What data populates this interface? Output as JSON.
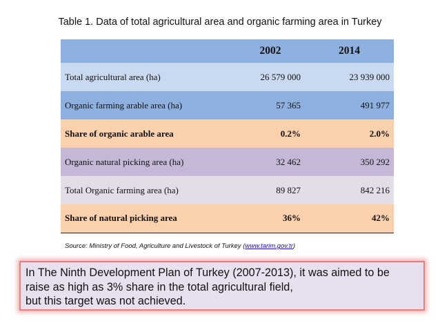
{
  "caption": "Table 1. Data of total agricultural area and organic farming area in Turkey",
  "colors": {
    "header": "#8eb0df",
    "row_total": "#c9d9ef",
    "row_organic": "#8eb0df",
    "row_share": "#fbd0ad",
    "row_picking": "#c4b8d6",
    "row_total_organic": "#e3dde9",
    "row_share_picking": "#fbd0ad",
    "note_background": "#e8e0ee",
    "note_border": "#e67f7f"
  },
  "table": {
    "headers": [
      "",
      "2002",
      "2014"
    ],
    "rows": [
      {
        "label": "Total agricultural area (ha)",
        "v2002": "26 579 000",
        "v2014": "23 939 000",
        "bold": false
      },
      {
        "label": "Organic farming arable area (ha)",
        "v2002": "57 365",
        "v2014": "491 977",
        "bold": false
      },
      {
        "label": "Share of organic arable area",
        "v2002": "0.2%",
        "v2014": "2.0%",
        "bold": true
      },
      {
        "label": "Organic natural picking area (ha)",
        "v2002": "32 462",
        "v2014": "350 292",
        "bold": false
      },
      {
        "label": "Total Organic farming area (ha)",
        "v2002": "89 827",
        "v2014": "842 216",
        "bold": false
      },
      {
        "label": "Share of natural picking area",
        "v2002": "36%",
        "v2014": "42%",
        "bold": true
      }
    ]
  },
  "source": {
    "prefix": "Source: Ministry of Food, Agriculture and Livestock of Turkey (",
    "link": "www.tarim.gov.tr",
    "suffix": ")"
  },
  "note": {
    "lines": [
      "In The Ninth Development Plan of Turkey (2007-2013), it was aimed to be",
      "raise as high as 3% share in the total agricultural field,",
      "but this target was not achieved."
    ]
  }
}
